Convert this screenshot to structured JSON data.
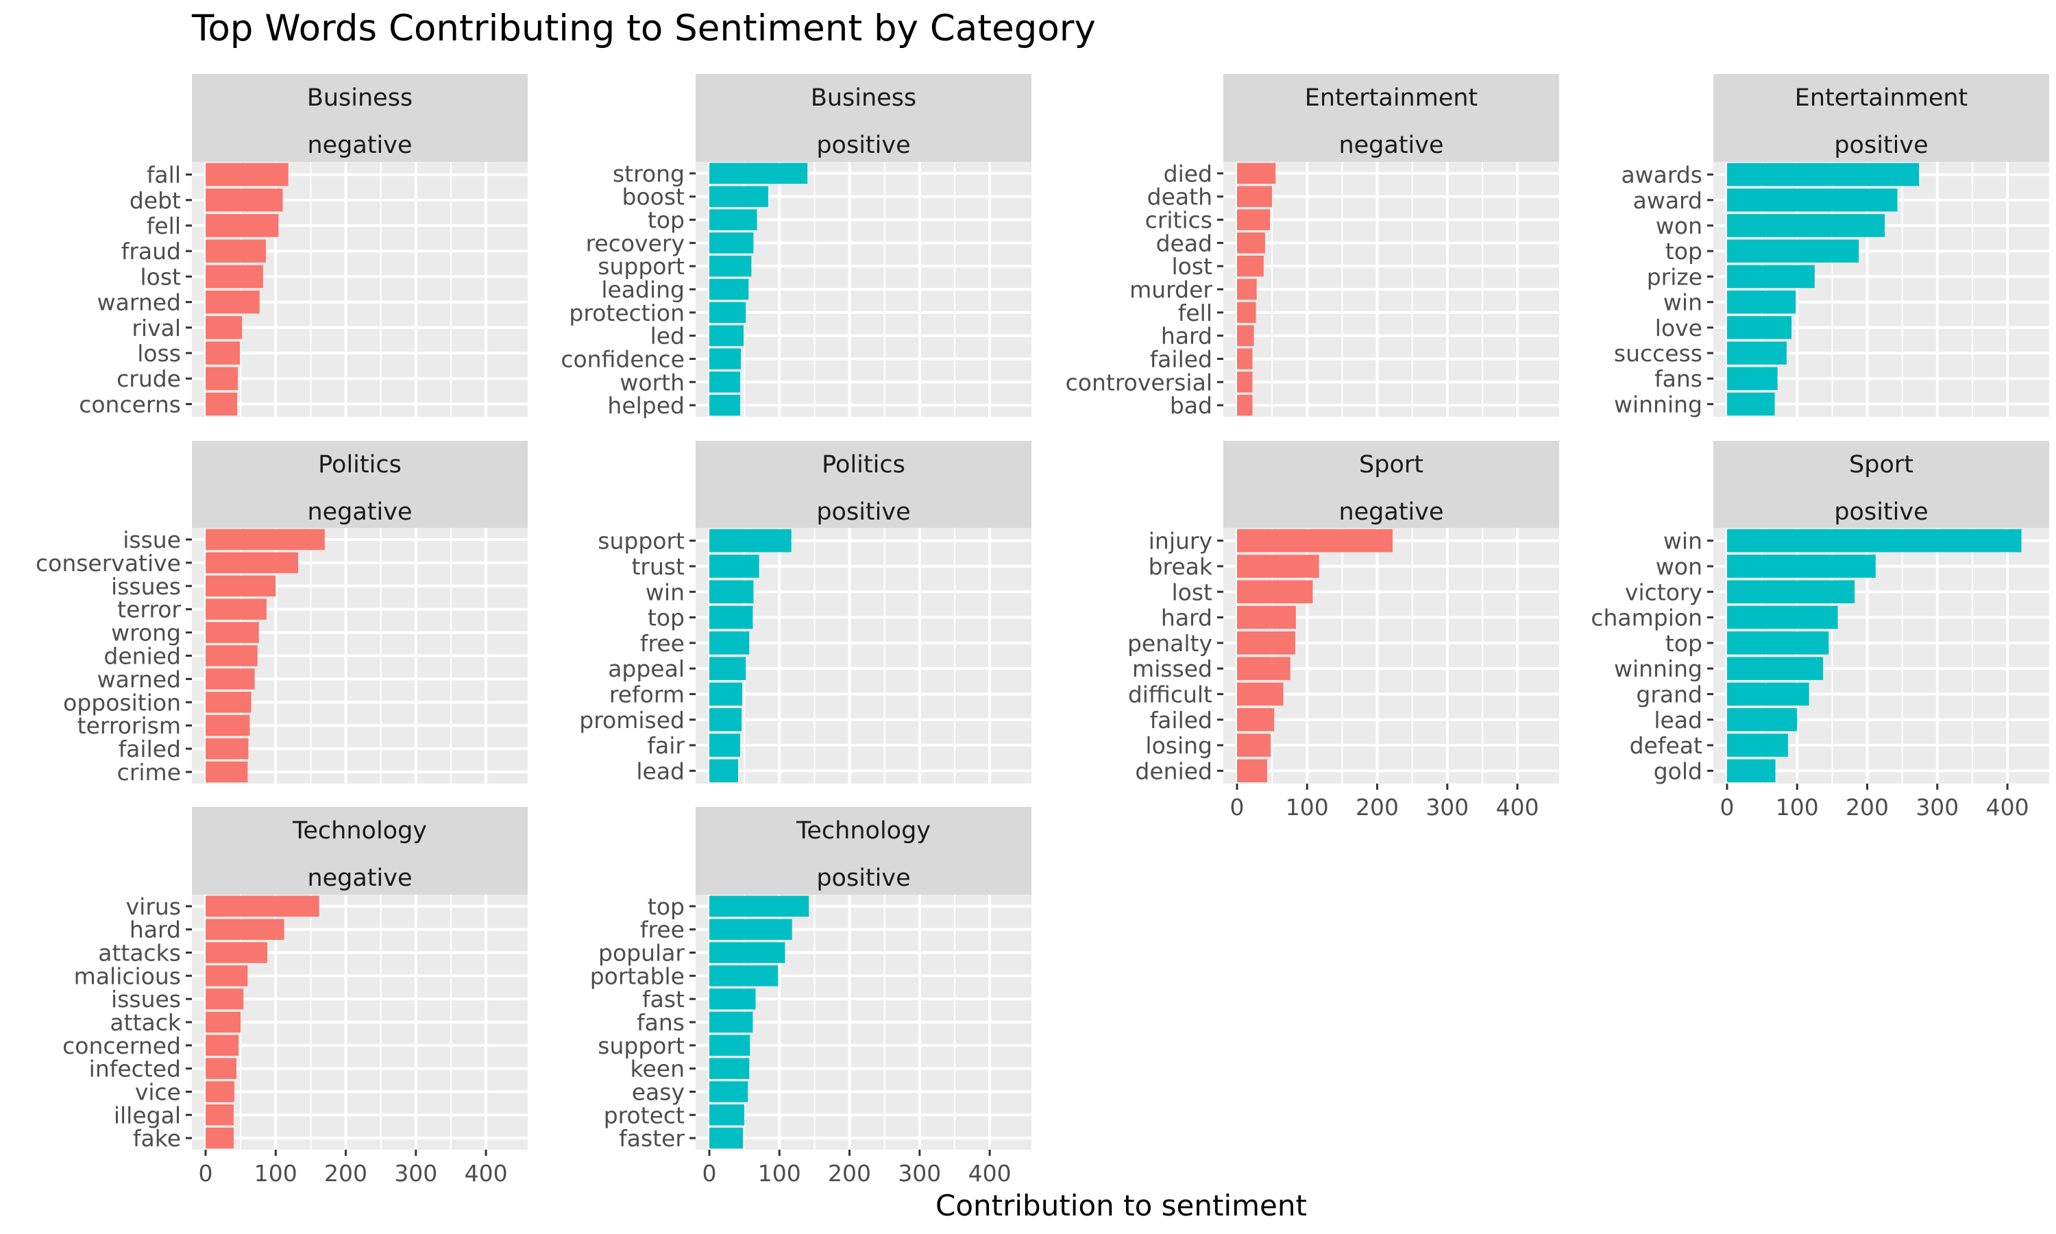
{
  "chart_data": {
    "type": "bar",
    "orientation": "horizontal",
    "title": "Top Words Contributing to Sentiment by Category",
    "xlabel": "Contribution to sentiment",
    "ylabel": "",
    "xlim": [
      0,
      440
    ],
    "x_ticks": [
      0,
      100,
      200,
      300,
      400
    ],
    "grid": true,
    "legend": "none",
    "colors": {
      "negative": "#F8766D",
      "positive": "#00BFC4"
    },
    "panels": [
      {
        "category": "Business",
        "sentiment": "negative",
        "words": [
          "fall",
          "debt",
          "fell",
          "fraud",
          "lost",
          "warned",
          "rival",
          "loss",
          "crude",
          "concerns"
        ],
        "values": [
          118,
          110,
          104,
          86,
          82,
          77,
          52,
          49,
          46,
          45
        ]
      },
      {
        "category": "Business",
        "sentiment": "positive",
        "words": [
          "strong",
          "boost",
          "top",
          "recovery",
          "support",
          "leading",
          "protection",
          "led",
          "confidence",
          "worth",
          "helped"
        ],
        "values": [
          140,
          84,
          68,
          63,
          60,
          56,
          52,
          49,
          45,
          44,
          44
        ]
      },
      {
        "category": "Entertainment",
        "sentiment": "negative",
        "words": [
          "died",
          "death",
          "critics",
          "dead",
          "lost",
          "murder",
          "fell",
          "hard",
          "failed",
          "controversial",
          "bad"
        ],
        "values": [
          55,
          50,
          47,
          40,
          38,
          28,
          27,
          24,
          22,
          22,
          22
        ]
      },
      {
        "category": "Entertainment",
        "sentiment": "positive",
        "words": [
          "awards",
          "award",
          "won",
          "top",
          "prize",
          "win",
          "love",
          "success",
          "fans",
          "winning"
        ],
        "values": [
          274,
          243,
          225,
          188,
          125,
          98,
          92,
          85,
          72,
          68
        ]
      },
      {
        "category": "Politics",
        "sentiment": "negative",
        "words": [
          "issue",
          "conservative",
          "issues",
          "terror",
          "wrong",
          "denied",
          "warned",
          "opposition",
          "terrorism",
          "failed",
          "crime"
        ],
        "values": [
          170,
          132,
          100,
          87,
          76,
          74,
          70,
          65,
          63,
          61,
          60
        ]
      },
      {
        "category": "Politics",
        "sentiment": "positive",
        "words": [
          "support",
          "trust",
          "win",
          "top",
          "free",
          "appeal",
          "reform",
          "promised",
          "fair",
          "lead"
        ],
        "values": [
          117,
          71,
          63,
          62,
          57,
          52,
          47,
          46,
          44,
          41
        ]
      },
      {
        "category": "Sport",
        "sentiment": "negative",
        "words": [
          "injury",
          "break",
          "lost",
          "hard",
          "penalty",
          "missed",
          "difficult",
          "failed",
          "losing",
          "denied"
        ],
        "values": [
          222,
          117,
          108,
          84,
          83,
          76,
          66,
          53,
          48,
          43
        ]
      },
      {
        "category": "Sport",
        "sentiment": "positive",
        "words": [
          "win",
          "won",
          "victory",
          "champion",
          "top",
          "winning",
          "grand",
          "lead",
          "defeat",
          "gold"
        ],
        "values": [
          420,
          212,
          182,
          158,
          145,
          137,
          117,
          100,
          87,
          69
        ]
      },
      {
        "category": "Technology",
        "sentiment": "negative",
        "words": [
          "virus",
          "hard",
          "attacks",
          "malicious",
          "issues",
          "attack",
          "concerned",
          "infected",
          "vice",
          "illegal",
          "fake"
        ],
        "values": [
          162,
          112,
          88,
          60,
          54,
          50,
          47,
          44,
          41,
          40,
          40
        ]
      },
      {
        "category": "Technology",
        "sentiment": "positive",
        "words": [
          "top",
          "free",
          "popular",
          "portable",
          "fast",
          "fans",
          "support",
          "keen",
          "easy",
          "protect",
          "faster"
        ],
        "values": [
          142,
          118,
          108,
          98,
          66,
          62,
          58,
          57,
          55,
          50,
          48
        ]
      }
    ]
  }
}
